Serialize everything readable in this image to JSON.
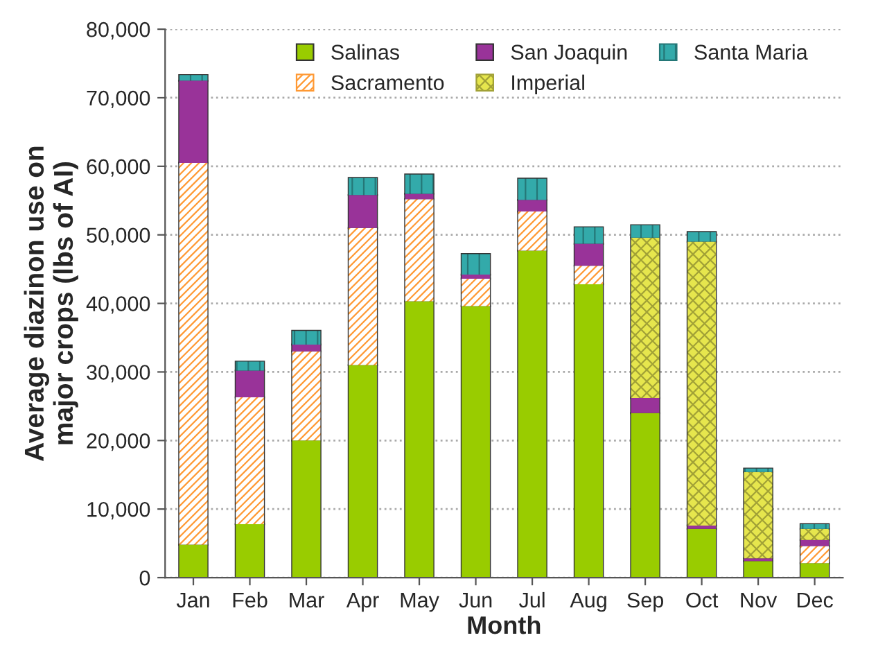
{
  "chart_data": {
    "type": "bar",
    "stacked": true,
    "xlabel": "Month",
    "ylabel": "Average diazinon use on\nmajor crops (lbs of AI)",
    "categories": [
      "Jan",
      "Feb",
      "Mar",
      "Apr",
      "May",
      "Jun",
      "Jul",
      "Aug",
      "Sep",
      "Oct",
      "Nov",
      "Dec"
    ],
    "series": [
      {
        "name": "Salinas",
        "color": "#99cc00",
        "values": [
          4800,
          7800,
          20000,
          31000,
          40300,
          39600,
          47700,
          42800,
          24000,
          7100,
          2400,
          2100
        ]
      },
      {
        "name": "Sacramento",
        "color": "#ff9933",
        "values": [
          55700,
          18500,
          13000,
          20000,
          14900,
          4000,
          5700,
          2700,
          null,
          null,
          null,
          2500
        ]
      },
      {
        "name": "San Joaquin",
        "color": "#993399",
        "values": [
          12000,
          3900,
          1000,
          4800,
          800,
          600,
          1700,
          3200,
          2200,
          500,
          400,
          900
        ]
      },
      {
        "name": "Imperial",
        "color": "#e6e64d",
        "values": [
          null,
          null,
          null,
          null,
          null,
          null,
          null,
          null,
          23400,
          41400,
          12600,
          1600
        ]
      },
      {
        "name": "Santa Maria",
        "color": "#33aaaa",
        "values": [
          800,
          1300,
          2000,
          2500,
          2800,
          3000,
          3100,
          2400,
          1800,
          1400,
          500,
          700
        ]
      }
    ],
    "ylim": [
      0,
      80000
    ],
    "yticks": [
      {
        "value": 0,
        "label": "0"
      },
      {
        "value": 10000,
        "label": "10,000"
      },
      {
        "value": 20000,
        "label": "20,000"
      },
      {
        "value": 30000,
        "label": "30,000"
      },
      {
        "value": 40000,
        "label": "40,000"
      },
      {
        "value": 50000,
        "label": "50,000"
      },
      {
        "value": 60000,
        "label": "60,000"
      },
      {
        "value": 70000,
        "label": "70,000"
      },
      {
        "value": 80000,
        "label": "80,000"
      }
    ],
    "grid": "y",
    "legend": "top right"
  }
}
